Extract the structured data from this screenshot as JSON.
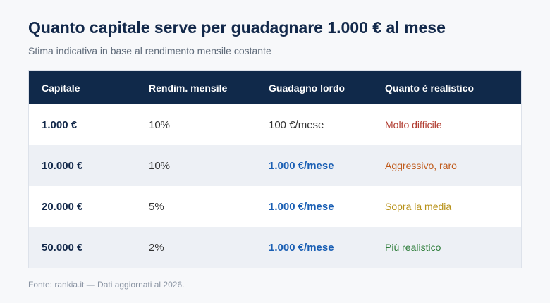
{
  "header": {
    "title": "Quanto capitale serve per guadagnare 1.000 € al mese",
    "subtitle": "Stima indicativa in base al rendimento mensile costante"
  },
  "table": {
    "columns": [
      "Capitale",
      "Rendim. mensile",
      "Guadagno lordo",
      "Quanto è realistico"
    ],
    "rows": [
      [
        "1.000 €",
        "10%",
        "100 €/mese",
        "Molto difficile"
      ],
      [
        "10.000 €",
        "10%",
        "1.000 €/mese",
        "Aggressivo, raro"
      ],
      [
        "20.000 €",
        "5%",
        "1.000 €/mese",
        "Sopra la media"
      ],
      [
        "50.000 €",
        "2%",
        "1.000 €/mese",
        "Più realistico"
      ]
    ]
  },
  "footer": {
    "source": "Fonte: rankia.it — Dati aggiornati al 2026."
  }
}
